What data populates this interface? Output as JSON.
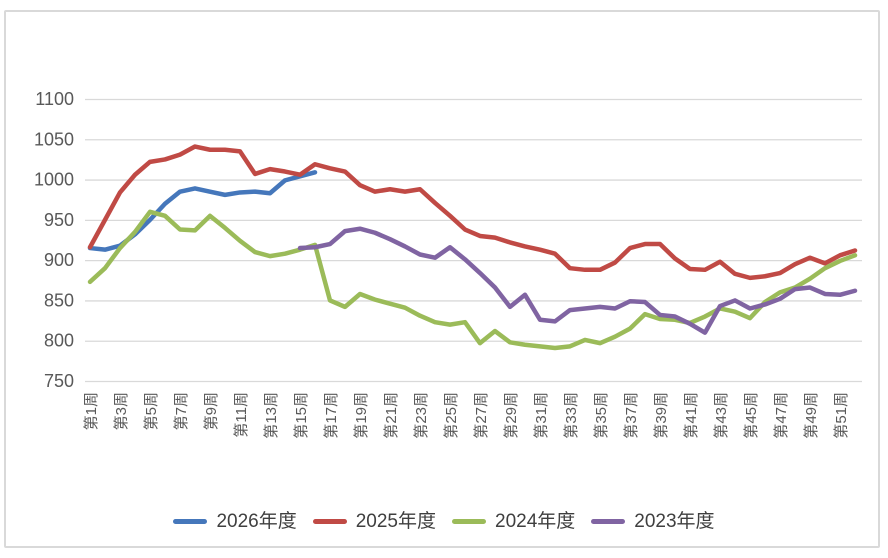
{
  "chart_data": {
    "type": "line",
    "title": "",
    "xlabel": "",
    "ylabel": "",
    "ylim": [
      750,
      1100
    ],
    "y_tick_step": 50,
    "y_tick_labels": [
      "750",
      "800",
      "850",
      "900",
      "950",
      "1000",
      "1050",
      "1100"
    ],
    "x_unit_weeks": 52,
    "x_tick_labels": [
      "第1周",
      "第3周",
      "第5周",
      "第7周",
      "第9周",
      "第11周",
      "第13周",
      "第15周",
      "第17周",
      "第19周",
      "第21周",
      "第23周",
      "第25周",
      "第27周",
      "第29周",
      "第31周",
      "第33周",
      "第35周",
      "第37周",
      "第39周",
      "第41周",
      "第43周",
      "第45周",
      "第47周",
      "第49周",
      "第51周"
    ],
    "grid": true,
    "legend_position": "bottom",
    "colors": {
      "gridline": "#d9d9d9",
      "axis_text": "#595959",
      "legend_text": "#3f3f3f",
      "frame_border": "#d9d9d9",
      "background": "#ffffff"
    },
    "series": [
      {
        "name": "2026年度",
        "color": "#4577bb",
        "start_week": 1,
        "values": [
          915,
          913,
          918,
          932,
          950,
          970,
          985,
          989,
          985,
          981,
          984,
          985,
          983,
          999,
          1004,
          1009
        ]
      },
      {
        "name": "2025年度",
        "color": "#c04a45",
        "start_week": 1,
        "values": [
          916,
          950,
          984,
          1006,
          1022,
          1025,
          1031,
          1041,
          1037,
          1037,
          1035,
          1007,
          1013,
          1010,
          1006,
          1019,
          1014,
          1010,
          993,
          985,
          988,
          985,
          988,
          971,
          955,
          938,
          930,
          928,
          922,
          917,
          913,
          908,
          890,
          888,
          888,
          897,
          915,
          920,
          920,
          902,
          889,
          888,
          898,
          883,
          878,
          880,
          884,
          895,
          903,
          896,
          906,
          912
        ]
      },
      {
        "name": "2024年度",
        "color": "#9bbb59",
        "start_week": 1,
        "values": [
          873,
          890,
          915,
          935,
          960,
          955,
          938,
          937,
          955,
          940,
          924,
          910,
          905,
          908,
          913,
          919,
          850,
          842,
          858,
          851,
          846,
          841,
          831,
          823,
          820,
          823,
          797,
          812,
          798,
          795,
          793,
          791,
          793,
          801,
          797,
          805,
          815,
          833,
          827,
          826,
          822,
          830,
          840,
          836,
          828,
          848,
          860,
          866,
          877,
          890,
          899,
          906
        ]
      },
      {
        "name": "2023年度",
        "color": "#8064a2",
        "start_week": 15,
        "values": [
          915,
          916,
          920,
          936,
          939,
          934,
          926,
          917,
          907,
          903,
          916,
          901,
          884,
          866,
          842,
          857,
          826,
          824,
          838,
          840,
          842,
          840,
          849,
          848,
          832,
          830,
          821,
          810,
          843,
          850,
          840,
          845,
          852,
          864,
          866,
          858,
          857,
          862
        ]
      }
    ]
  }
}
